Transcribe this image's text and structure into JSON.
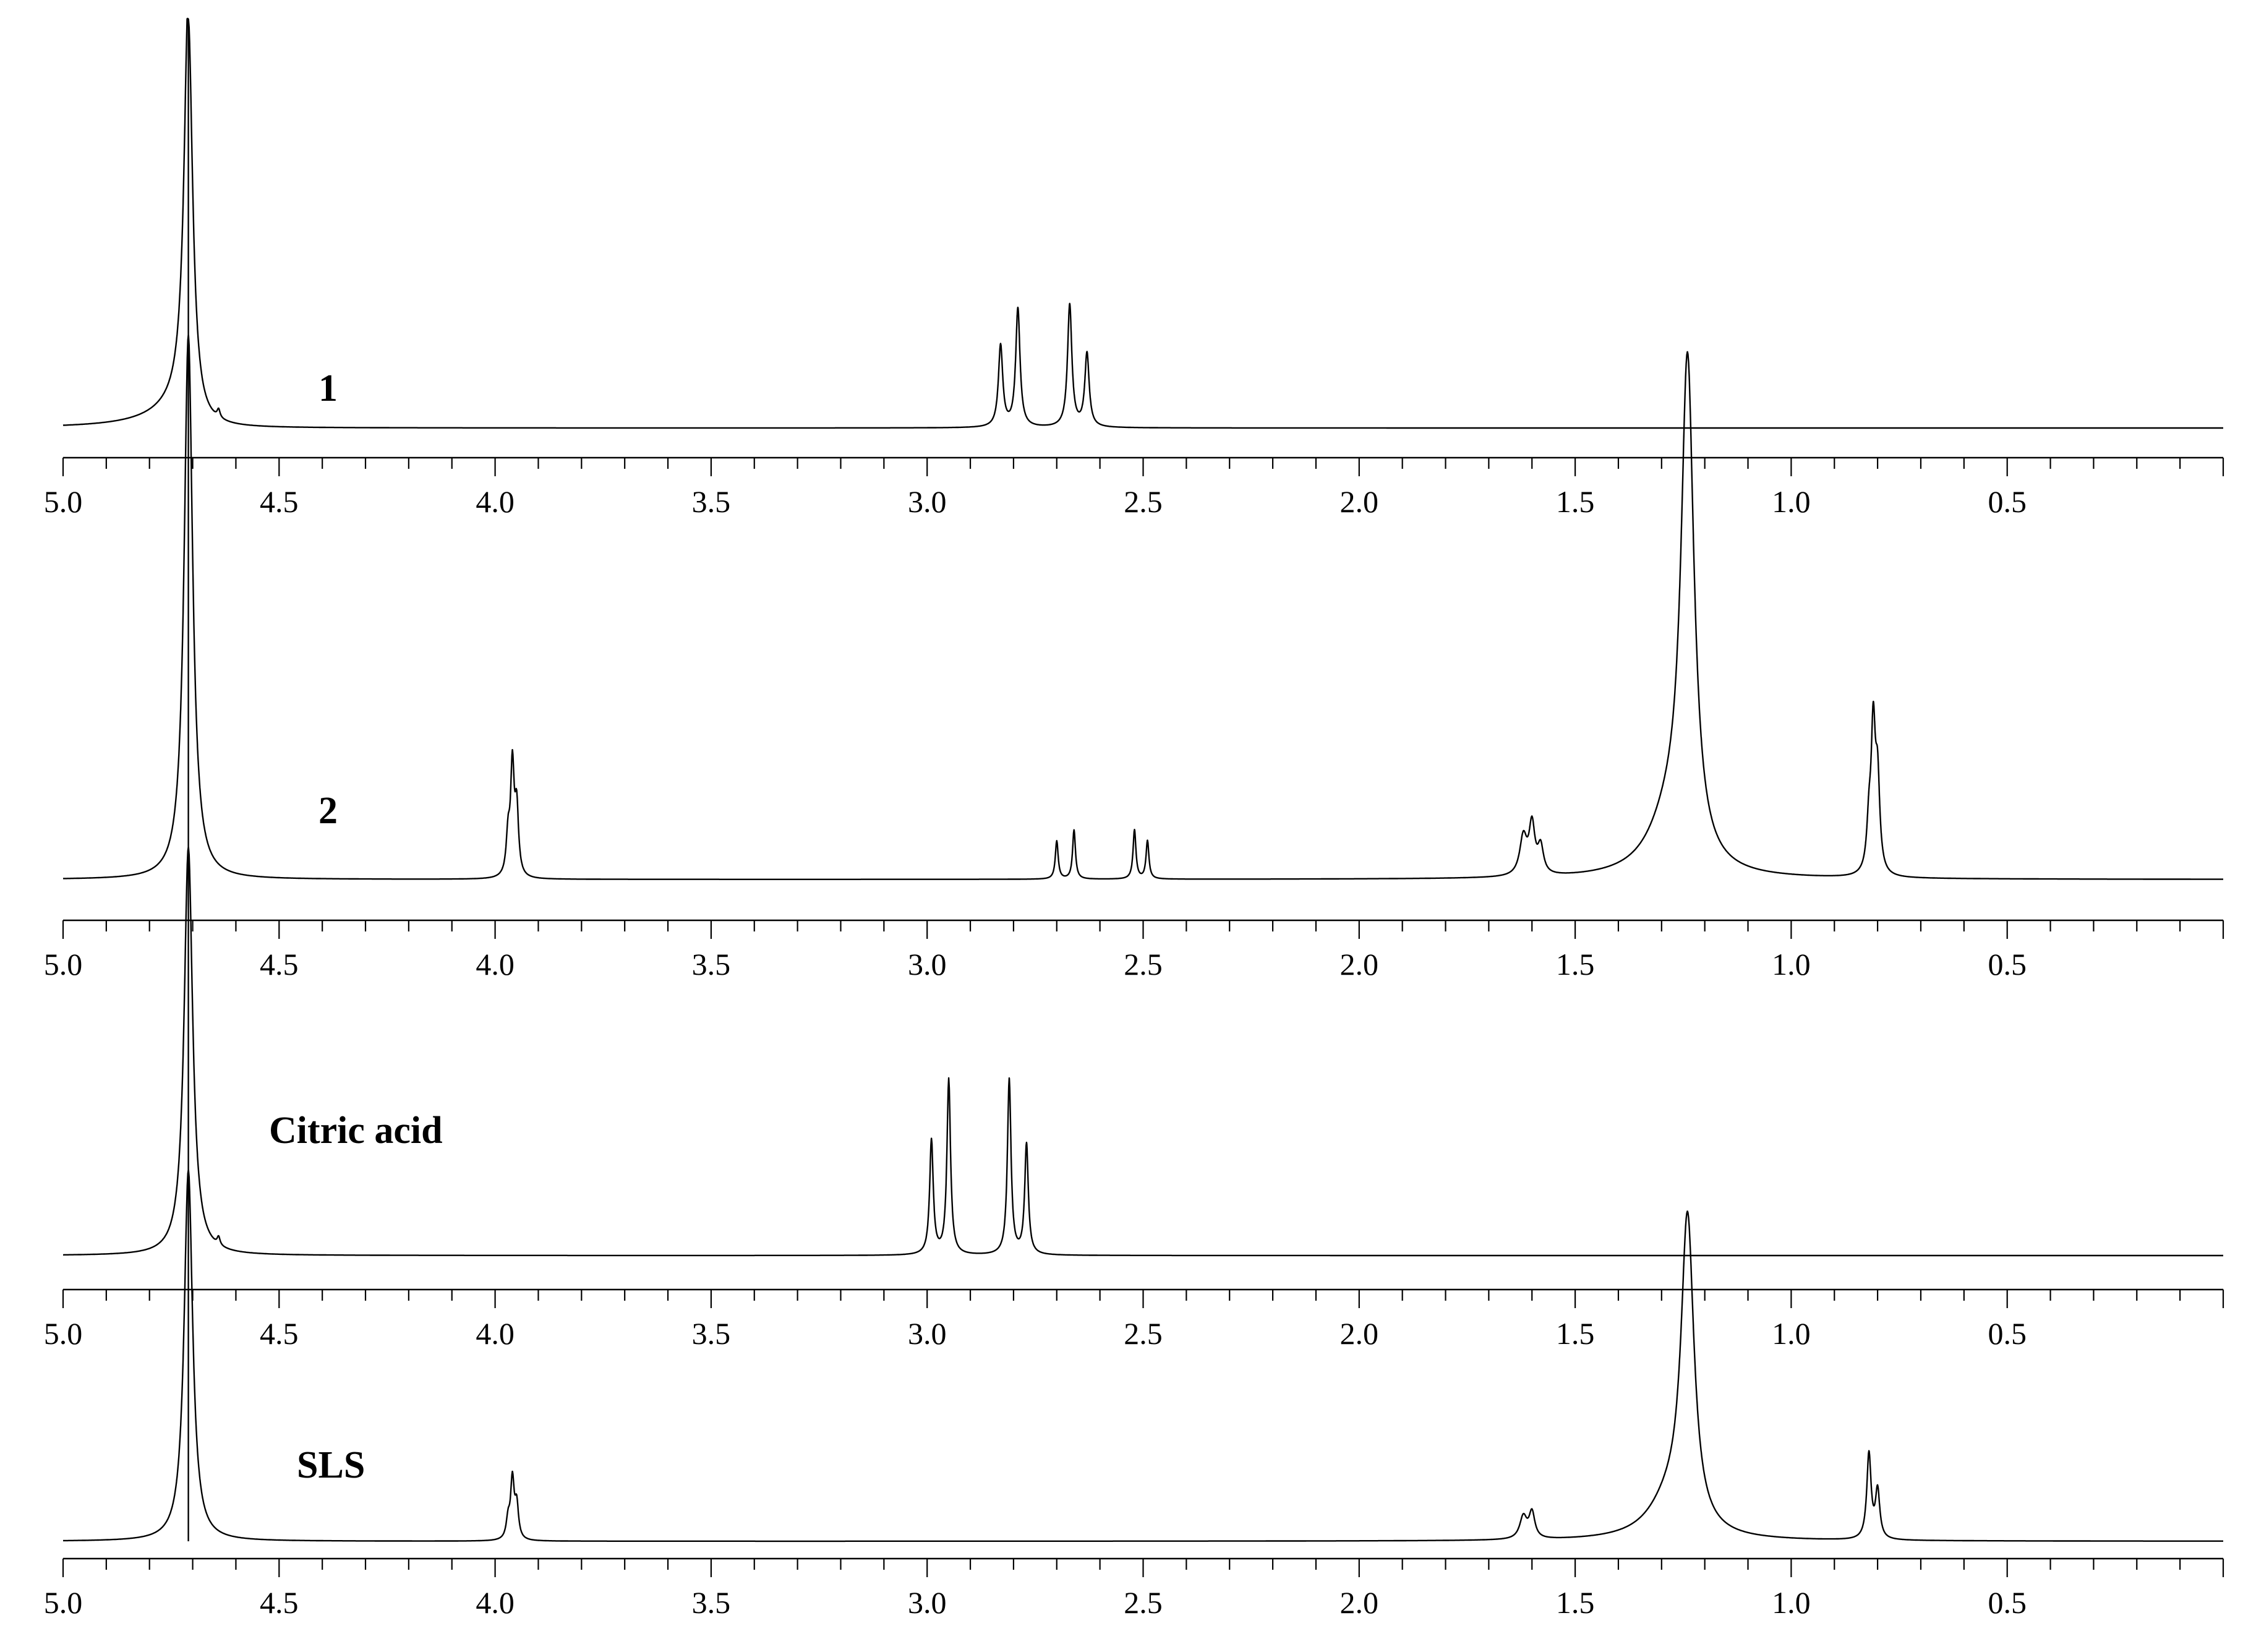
{
  "chart_data": {
    "type": "line",
    "x_axis": {
      "reversed": true,
      "range": [
        5.0,
        0.0
      ],
      "tick_labels": [
        "5.0",
        "4.5",
        "4.0",
        "3.5",
        "3.0",
        "2.5",
        "2.0",
        "1.5",
        "1.0",
        "0.5"
      ],
      "major_tick_values": [
        5.0,
        4.5,
        4.0,
        3.5,
        3.0,
        2.5,
        2.0,
        1.5,
        1.0,
        0.5
      ],
      "minor_tick_step": 0.1
    },
    "stacked_panels": true,
    "shared_peak_ppm": 4.71,
    "spectra": [
      {
        "label": "1",
        "peaks": [
          {
            "ppm": 4.71,
            "height": 1.0,
            "width": 0.012,
            "tail": 0.35
          },
          {
            "ppm": 4.64,
            "height": 0.02,
            "width": 0.004
          },
          {
            "ppm": 2.83,
            "height": 0.2,
            "width": 0.006
          },
          {
            "ppm": 2.79,
            "height": 0.29,
            "width": 0.006
          },
          {
            "ppm": 2.67,
            "height": 0.3,
            "width": 0.006
          },
          {
            "ppm": 2.63,
            "height": 0.18,
            "width": 0.006
          }
        ]
      },
      {
        "label": "2",
        "peaks": [
          {
            "ppm": 4.71,
            "height": 1.0,
            "width": 0.012
          },
          {
            "ppm": 3.97,
            "height": 0.07,
            "width": 0.005
          },
          {
            "ppm": 3.96,
            "height": 0.2,
            "width": 0.005
          },
          {
            "ppm": 3.95,
            "height": 0.12,
            "width": 0.005
          },
          {
            "ppm": 2.7,
            "height": 0.07,
            "width": 0.004
          },
          {
            "ppm": 2.66,
            "height": 0.09,
            "width": 0.004
          },
          {
            "ppm": 2.52,
            "height": 0.09,
            "width": 0.004
          },
          {
            "ppm": 2.49,
            "height": 0.07,
            "width": 0.004
          },
          {
            "ppm": 1.62,
            "height": 0.07,
            "width": 0.01
          },
          {
            "ppm": 1.6,
            "height": 0.09,
            "width": 0.008
          },
          {
            "ppm": 1.58,
            "height": 0.05,
            "width": 0.008
          },
          {
            "ppm": 1.28,
            "height": 0.1,
            "width": 0.06
          },
          {
            "ppm": 1.24,
            "height": 0.9,
            "width": 0.018
          },
          {
            "ppm": 0.82,
            "height": 0.08,
            "width": 0.006
          },
          {
            "ppm": 0.81,
            "height": 0.26,
            "width": 0.006
          },
          {
            "ppm": 0.8,
            "height": 0.16,
            "width": 0.006
          }
        ]
      },
      {
        "label": "Citric acid",
        "peaks": [
          {
            "ppm": 4.71,
            "height": 1.0,
            "width": 0.012
          },
          {
            "ppm": 4.64,
            "height": 0.02,
            "width": 0.004
          },
          {
            "ppm": 2.99,
            "height": 0.28,
            "width": 0.005
          },
          {
            "ppm": 2.95,
            "height": 0.43,
            "width": 0.005
          },
          {
            "ppm": 2.81,
            "height": 0.43,
            "width": 0.005
          },
          {
            "ppm": 2.77,
            "height": 0.27,
            "width": 0.005
          }
        ]
      },
      {
        "label": "SLS",
        "peaks": [
          {
            "ppm": 4.71,
            "height": 1.0,
            "width": 0.012
          },
          {
            "ppm": 3.97,
            "height": 0.05,
            "width": 0.005
          },
          {
            "ppm": 3.96,
            "height": 0.16,
            "width": 0.005
          },
          {
            "ppm": 3.95,
            "height": 0.09,
            "width": 0.005
          },
          {
            "ppm": 1.62,
            "height": 0.06,
            "width": 0.01
          },
          {
            "ppm": 1.6,
            "height": 0.07,
            "width": 0.008
          },
          {
            "ppm": 1.28,
            "height": 0.1,
            "width": 0.06
          },
          {
            "ppm": 1.24,
            "height": 0.82,
            "width": 0.018
          },
          {
            "ppm": 0.82,
            "height": 0.23,
            "width": 0.006
          },
          {
            "ppm": 0.8,
            "height": 0.13,
            "width": 0.006
          }
        ]
      }
    ]
  }
}
